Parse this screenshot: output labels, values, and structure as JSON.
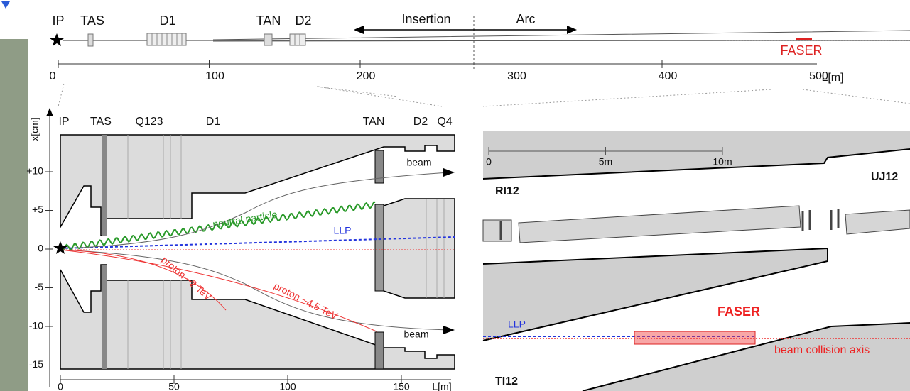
{
  "overview": {
    "labels": [
      "IP",
      "TAS",
      "D1",
      "TAN",
      "D2"
    ],
    "insertion": "Insertion",
    "arc": "Arc",
    "faser": "FASER",
    "axis": {
      "ticks": [
        0,
        100,
        200,
        300,
        400,
        500
      ],
      "unit": "L[m]"
    }
  },
  "left_panel": {
    "y_label": "x[cm]",
    "elements": [
      "IP",
      "TAS",
      "Q123",
      "D1",
      "TAN",
      "D2",
      "Q4"
    ],
    "yticks": [
      {
        "value": 10,
        "label": "+10"
      },
      {
        "value": 5,
        "label": "+5"
      },
      0,
      -5,
      -10,
      -15
    ],
    "xticks": [
      0,
      50,
      100,
      150
    ],
    "x_unit": "L[m]",
    "beam_upper": "beam",
    "beam_lower": "beam",
    "neutral": "neutral particle",
    "llp": "LLP",
    "proton_low": "proton ~2 TeV",
    "proton_high": "proton ~4.5 TeV"
  },
  "right_panel": {
    "scale_ticks": [
      0,
      {
        "value": 5,
        "label": "5m"
      },
      {
        "value": 10,
        "label": "10m"
      }
    ],
    "ri12": "RI12",
    "uj12": "UJ12",
    "ti12": "TI12",
    "faser": "FASER",
    "llp": "LLP",
    "axis": "beam collision axis"
  }
}
